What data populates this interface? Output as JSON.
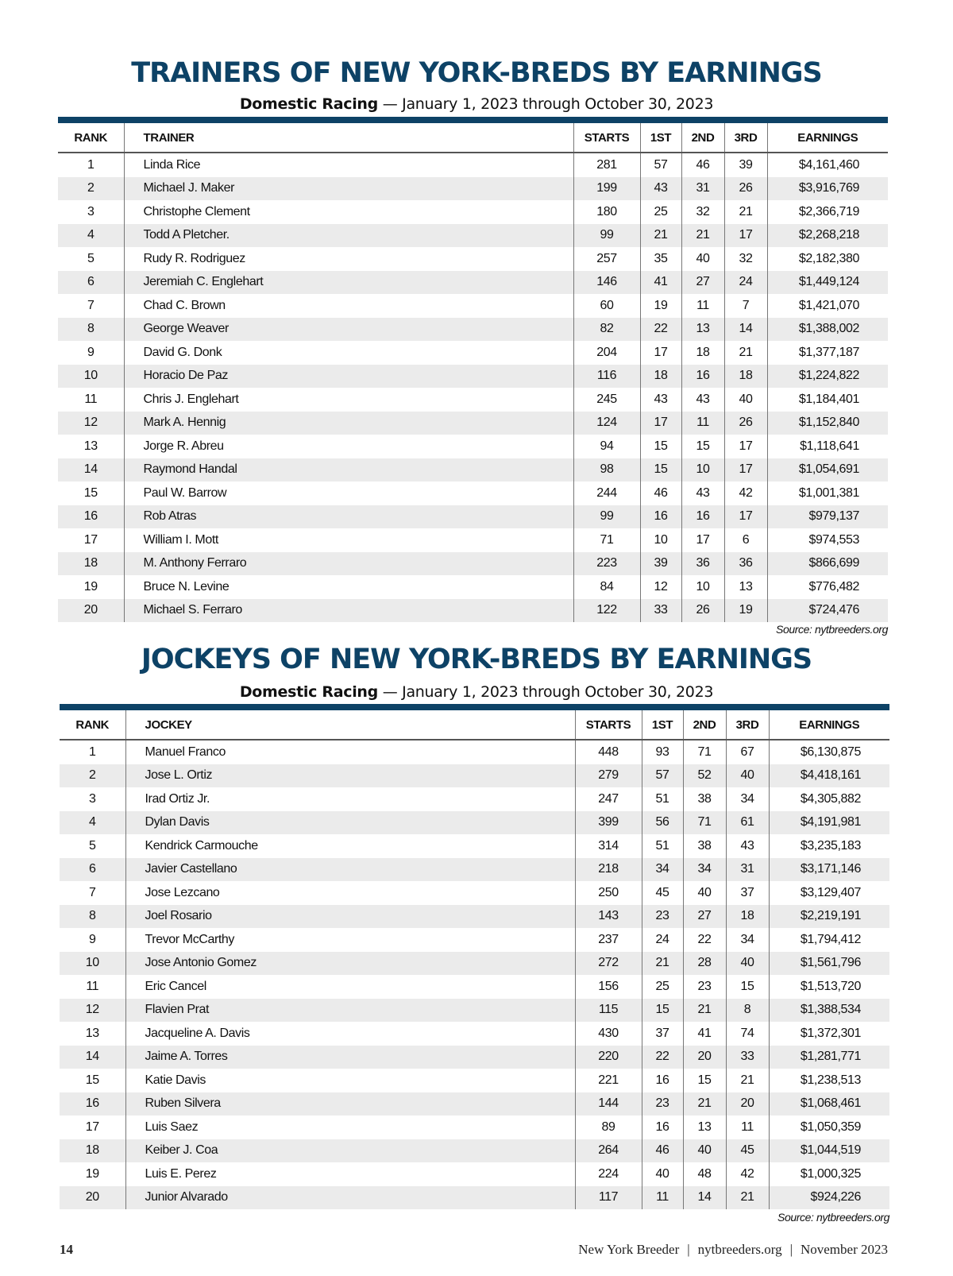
{
  "columns": {
    "rank": "RANK",
    "starts": "STARTS",
    "first": "1ST",
    "second": "2ND",
    "third": "3RD",
    "earnings": "EARNINGS"
  },
  "trainers": {
    "title": "TRAINERS OF NEW YORK-BREDS BY EARNINGS",
    "subtitle_bold": "Domestic Racing",
    "subtitle_rest": " — January 1, 2023 through October 30, 2023",
    "name_header": "TRAINER",
    "source": "Source: nytbreeders.org",
    "rows": [
      [
        "1",
        "Linda Rice",
        "281",
        "57",
        "46",
        "39",
        "$4,161,460"
      ],
      [
        "2",
        "Michael J. Maker",
        "199",
        "43",
        "31",
        "26",
        "$3,916,769"
      ],
      [
        "3",
        "Christophe Clement",
        "180",
        "25",
        "32",
        "21",
        "$2,366,719"
      ],
      [
        "4",
        "Todd A Pletcher.",
        "99",
        "21",
        "21",
        "17",
        "$2,268,218"
      ],
      [
        "5",
        "Rudy R. Rodriguez",
        "257",
        "35",
        "40",
        "32",
        "$2,182,380"
      ],
      [
        "6",
        "Jeremiah C. Englehart",
        "146",
        "41",
        "27",
        "24",
        "$1,449,124"
      ],
      [
        "7",
        "Chad C. Brown",
        "60",
        "19",
        "11",
        "7",
        "$1,421,070"
      ],
      [
        "8",
        "George Weaver",
        "82",
        "22",
        "13",
        "14",
        "$1,388,002"
      ],
      [
        "9",
        "David G. Donk",
        "204",
        "17",
        "18",
        "21",
        "$1,377,187"
      ],
      [
        "10",
        "Horacio De Paz",
        "116",
        "18",
        "16",
        "18",
        "$1,224,822"
      ],
      [
        "11",
        "Chris J. Englehart",
        "245",
        "43",
        "43",
        "40",
        "$1,184,401"
      ],
      [
        "12",
        "Mark A. Hennig",
        "124",
        "17",
        "11",
        "26",
        "$1,152,840"
      ],
      [
        "13",
        "Jorge R. Abreu",
        "94",
        "15",
        "15",
        "17",
        "$1,118,641"
      ],
      [
        "14",
        "Raymond Handal",
        "98",
        "15",
        "10",
        "17",
        "$1,054,691"
      ],
      [
        "15",
        "Paul W. Barrow",
        "244",
        "46",
        "43",
        "42",
        "$1,001,381"
      ],
      [
        "16",
        "Rob Atras",
        "99",
        "16",
        "16",
        "17",
        "$979,137"
      ],
      [
        "17",
        "William I. Mott",
        "71",
        "10",
        "17",
        "6",
        "$974,553"
      ],
      [
        "18",
        "M. Anthony Ferraro",
        "223",
        "39",
        "36",
        "36",
        "$866,699"
      ],
      [
        "19",
        "Bruce N. Levine",
        "84",
        "12",
        "10",
        "13",
        "$776,482"
      ],
      [
        "20",
        "Michael S. Ferraro",
        "122",
        "33",
        "26",
        "19",
        "$724,476"
      ]
    ]
  },
  "jockeys": {
    "title": "JOCKEYS OF NEW YORK-BREDS BY EARNINGS",
    "subtitle_bold": "Domestic Racing",
    "subtitle_rest": " — January 1, 2023 through October 30, 2023",
    "name_header": "JOCKEY",
    "source": "Source: nytbreeders.org",
    "rows": [
      [
        "1",
        "Manuel Franco",
        "448",
        "93",
        "71",
        "67",
        "$6,130,875"
      ],
      [
        "2",
        "Jose L. Ortiz",
        "279",
        "57",
        "52",
        "40",
        "$4,418,161"
      ],
      [
        "3",
        "Irad Ortiz Jr.",
        "247",
        "51",
        "38",
        "34",
        "$4,305,882"
      ],
      [
        "4",
        "Dylan Davis",
        "399",
        "56",
        "71",
        "61",
        "$4,191,981"
      ],
      [
        "5",
        "Kendrick Carmouche",
        "314",
        "51",
        "38",
        "43",
        "$3,235,183"
      ],
      [
        "6",
        "Javier Castellano",
        "218",
        "34",
        "34",
        "31",
        "$3,171,146"
      ],
      [
        "7",
        "Jose Lezcano",
        "250",
        "45",
        "40",
        "37",
        "$3,129,407"
      ],
      [
        "8",
        "Joel Rosario",
        "143",
        "23",
        "27",
        "18",
        "$2,219,191"
      ],
      [
        "9",
        "Trevor McCarthy",
        "237",
        "24",
        "22",
        "34",
        "$1,794,412"
      ],
      [
        "10",
        "Jose Antonio Gomez",
        "272",
        "21",
        "28",
        "40",
        "$1,561,796"
      ],
      [
        "11",
        "Eric Cancel",
        "156",
        "25",
        "23",
        "15",
        "$1,513,720"
      ],
      [
        "12",
        "Flavien Prat",
        "115",
        "15",
        "21",
        "8",
        "$1,388,534"
      ],
      [
        "13",
        "Jacqueline A. Davis",
        "430",
        "37",
        "41",
        "74",
        "$1,372,301"
      ],
      [
        "14",
        "Jaime A. Torres",
        "220",
        "22",
        "20",
        "33",
        "$1,281,771"
      ],
      [
        "15",
        "Katie Davis",
        "221",
        "16",
        "15",
        "21",
        "$1,238,513"
      ],
      [
        "16",
        "Ruben Silvera",
        "144",
        "23",
        "21",
        "20",
        "$1,068,461"
      ],
      [
        "17",
        "Luis Saez",
        "89",
        "16",
        "13",
        "11",
        "$1,050,359"
      ],
      [
        "18",
        "Keiber J. Coa",
        "264",
        "46",
        "40",
        "45",
        "$1,044,519"
      ],
      [
        "19",
        "Luis E. Perez",
        "224",
        "40",
        "48",
        "42",
        "$1,000,325"
      ],
      [
        "20",
        "Junior Alvarado",
        "117",
        "11",
        "14",
        "21",
        "$924,226"
      ]
    ]
  },
  "footer": {
    "page_number": "14",
    "publication": "New York Breeder",
    "website": "nytbreeders.org",
    "issue": "November 2023",
    "separator": "|"
  },
  "colors": {
    "title": "#0d4266",
    "rule": "#0d4266",
    "row_alt": "#ebebeb"
  }
}
